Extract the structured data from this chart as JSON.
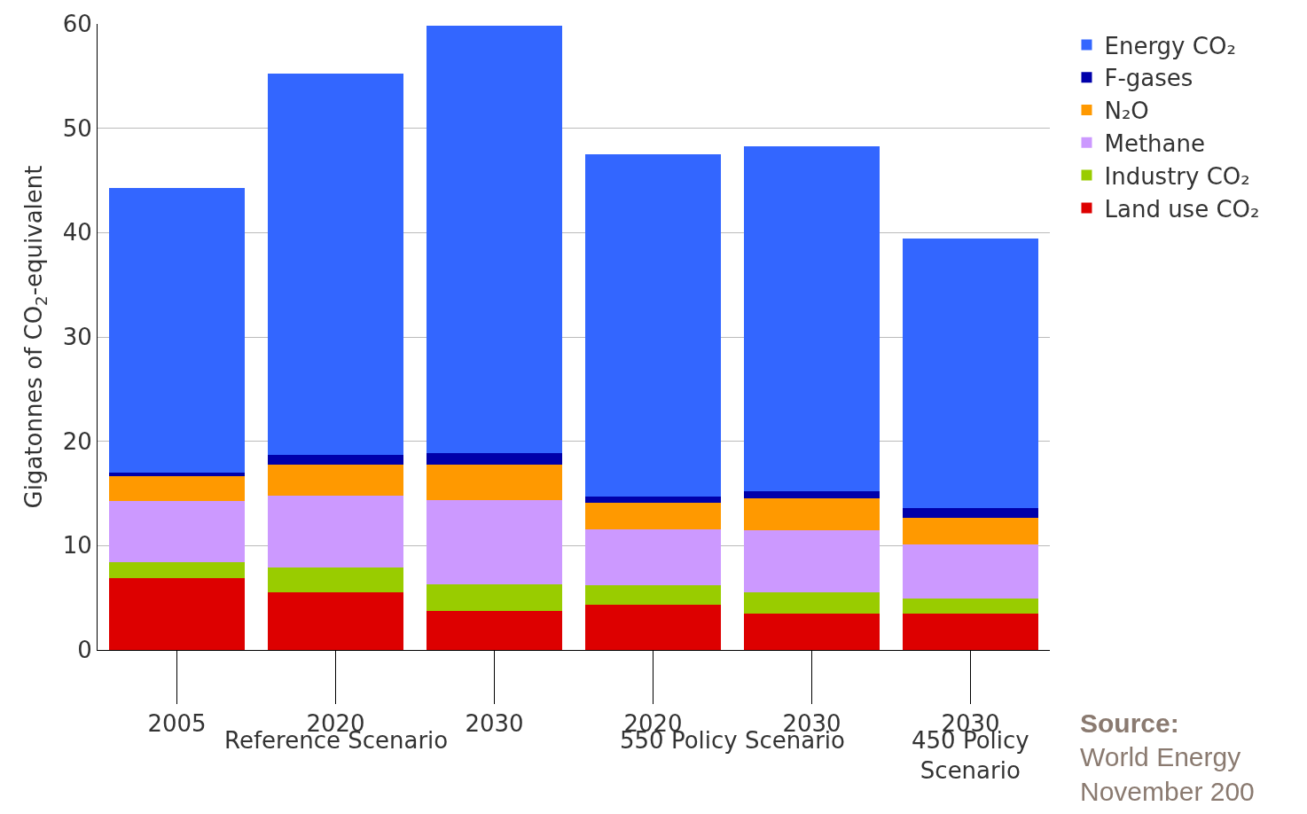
{
  "chart_data": {
    "type": "bar",
    "stacked": true,
    "ylabel": "Gigatonnes of CO$_{2}$-equivalent",
    "categories": [
      "2005",
      "2020",
      "2030",
      "2020",
      "2030",
      "2030"
    ],
    "series": [
      {
        "name": "Land use CO₂",
        "color": "#dd0000",
        "values": [
          6.9,
          5.5,
          3.7,
          4.3,
          3.5,
          3.5
        ]
      },
      {
        "name": "Industry CO₂",
        "color": "#99cc00",
        "values": [
          1.5,
          2.4,
          2.6,
          1.9,
          2.0,
          1.4
        ]
      },
      {
        "name": "Methane",
        "color": "#cc99ff",
        "values": [
          5.9,
          6.9,
          8.1,
          5.4,
          6.0,
          5.2
        ]
      },
      {
        "name": "N₂O",
        "color": "#ff9900",
        "values": [
          2.4,
          3.0,
          3.4,
          2.5,
          3.0,
          2.6
        ]
      },
      {
        "name": "F-gases",
        "color": "#0000aa",
        "values": [
          0.3,
          0.9,
          1.1,
          0.6,
          0.7,
          0.9
        ]
      },
      {
        "name": "Energy CO₂",
        "color": "#3366ff",
        "values": [
          27.3,
          36.5,
          40.9,
          32.8,
          33.1,
          25.8
        ]
      }
    ],
    "ylim": [
      0,
      60
    ],
    "yticks": [
      0,
      10,
      20,
      30,
      40,
      50,
      60
    ],
    "grid": "y",
    "legend": "top right",
    "annotations": [
      "Reference Scenario",
      "550 Policy Scenario",
      "450 Policy Scenario",
      "Source:",
      "World Energy",
      "November 200"
    ]
  }
}
